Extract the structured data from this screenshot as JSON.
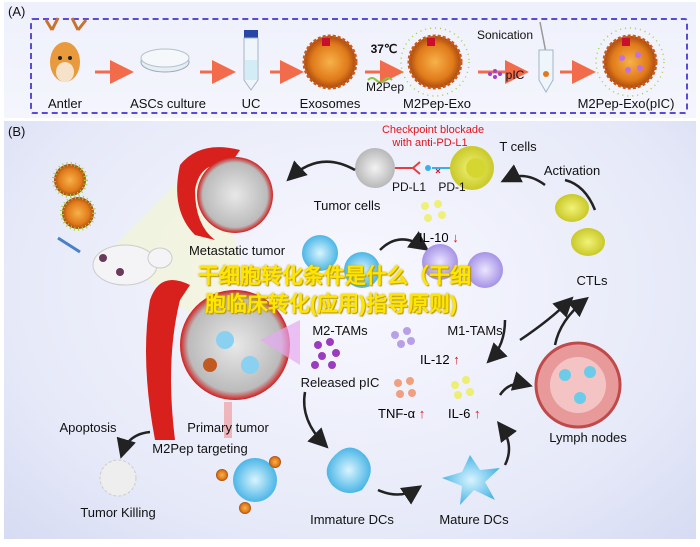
{
  "panel_a": {
    "label": "(A)",
    "steps": [
      "Antler",
      "ASCs culture",
      "UC",
      "Exosomes",
      "M2Pep-Exo",
      "M2Pep-Exo(pIC)"
    ],
    "temperature": "37℃",
    "peptide": "M2Pep",
    "sonication": "Sonication",
    "pic": "pIC"
  },
  "panel_b": {
    "label": "(B)",
    "checkpoint_line1": "Checkpoint blockade",
    "checkpoint_line2": "with anti-PD-L1",
    "t_cells": "T cells",
    "pd_l1": "PD-L1",
    "pd_1": "PD-1",
    "tumor_cells": "Tumor cells",
    "metastatic_tumor": "Metastatic tumor",
    "activation": "Activation",
    "il10": "IL-10",
    "ctls": "CTLs",
    "m2_tams": "M2-TAMs",
    "m1_tams": "M1-TAMs",
    "released_pic": "Released pIC",
    "il12": "IL-12",
    "tnf": "TNF-α",
    "il6": "IL-6",
    "lymph_nodes": "Lymph nodes",
    "primary_tumor": "Primary tumor",
    "apoptosis": "Apoptosis",
    "m2pep_targeting": "M2Pep targeting",
    "tumor_killing": "Tumor Killing",
    "immature_dcs": "Immature DCs",
    "mature_dcs": "Mature DCs",
    "up_arrow": "↑",
    "down_arrow": "↓"
  },
  "overlay": {
    "line1": "干细胞转化条件是什么（干细",
    "line2": "胞临床转化(应用)指导原则)"
  },
  "colors": {
    "accent_dash": "#5a4bd6",
    "arrow_orange": "#f26b4a",
    "red_text": "#e0141c",
    "overlay_yellow": "#ffe600"
  }
}
